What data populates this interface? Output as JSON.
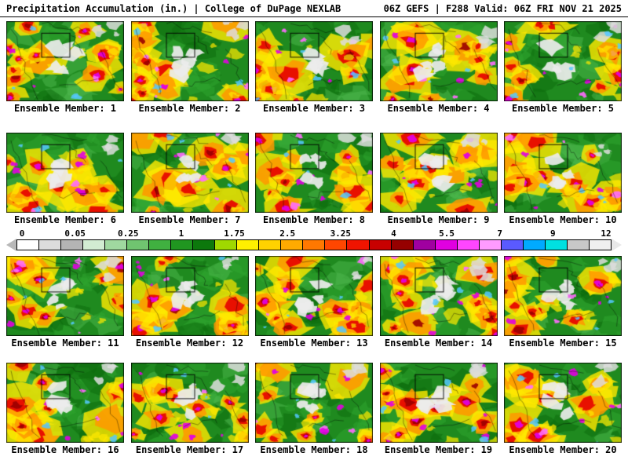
{
  "header": {
    "title_left": "Precipitation Accumulation (in.) | College of DuPage NEXLAB",
    "title_right": "06Z GEFS | F288 Valid: 06Z FRI NOV 21 2025"
  },
  "colorbar": {
    "ticks": [
      "0",
      "0.05",
      "0.25",
      "1",
      "1.75",
      "2.5",
      "3.25",
      "4",
      "5.5",
      "7",
      "9",
      "12"
    ],
    "colors": [
      "#ffffff",
      "#dcdcdc",
      "#b4b4b4",
      "#d2ecd2",
      "#a0d8a0",
      "#70c470",
      "#40b040",
      "#209620",
      "#0c780c",
      "#a0d800",
      "#fff000",
      "#ffd200",
      "#ffaa00",
      "#ff7800",
      "#ff4600",
      "#f01400",
      "#c80000",
      "#960000",
      "#a000a0",
      "#e100e1",
      "#ff46ff",
      "#ff9bff",
      "#5a5aff",
      "#00aaff",
      "#00e1e1",
      "#c8c8c8",
      "#f0f0f0"
    ]
  },
  "map_palette": {
    "base_green": "#1f8a1f",
    "dark_green": "#0c6a0c",
    "light_green": "#4db84d",
    "yellow": "#ffe800",
    "orange": "#ff9800",
    "red": "#e60000",
    "dark_red": "#9b0000",
    "magenta": "#e100e1",
    "pink": "#ff6bff",
    "white_patch": "#ebebeb",
    "cyan": "#55c8ff",
    "coast": "#000000"
  },
  "members": [
    "Ensemble Member: 1",
    "Ensemble Member: 2",
    "Ensemble Member: 3",
    "Ensemble Member: 4",
    "Ensemble Member: 5",
    "Ensemble Member: 6",
    "Ensemble Member: 7",
    "Ensemble Member: 8",
    "Ensemble Member: 9",
    "Ensemble Member: 10",
    "Ensemble Member: 11",
    "Ensemble Member: 12",
    "Ensemble Member: 13",
    "Ensemble Member: 14",
    "Ensemble Member: 15",
    "Ensemble Member: 16",
    "Ensemble Member: 17",
    "Ensemble Member: 18",
    "Ensemble Member: 19",
    "Ensemble Member: 20"
  ]
}
